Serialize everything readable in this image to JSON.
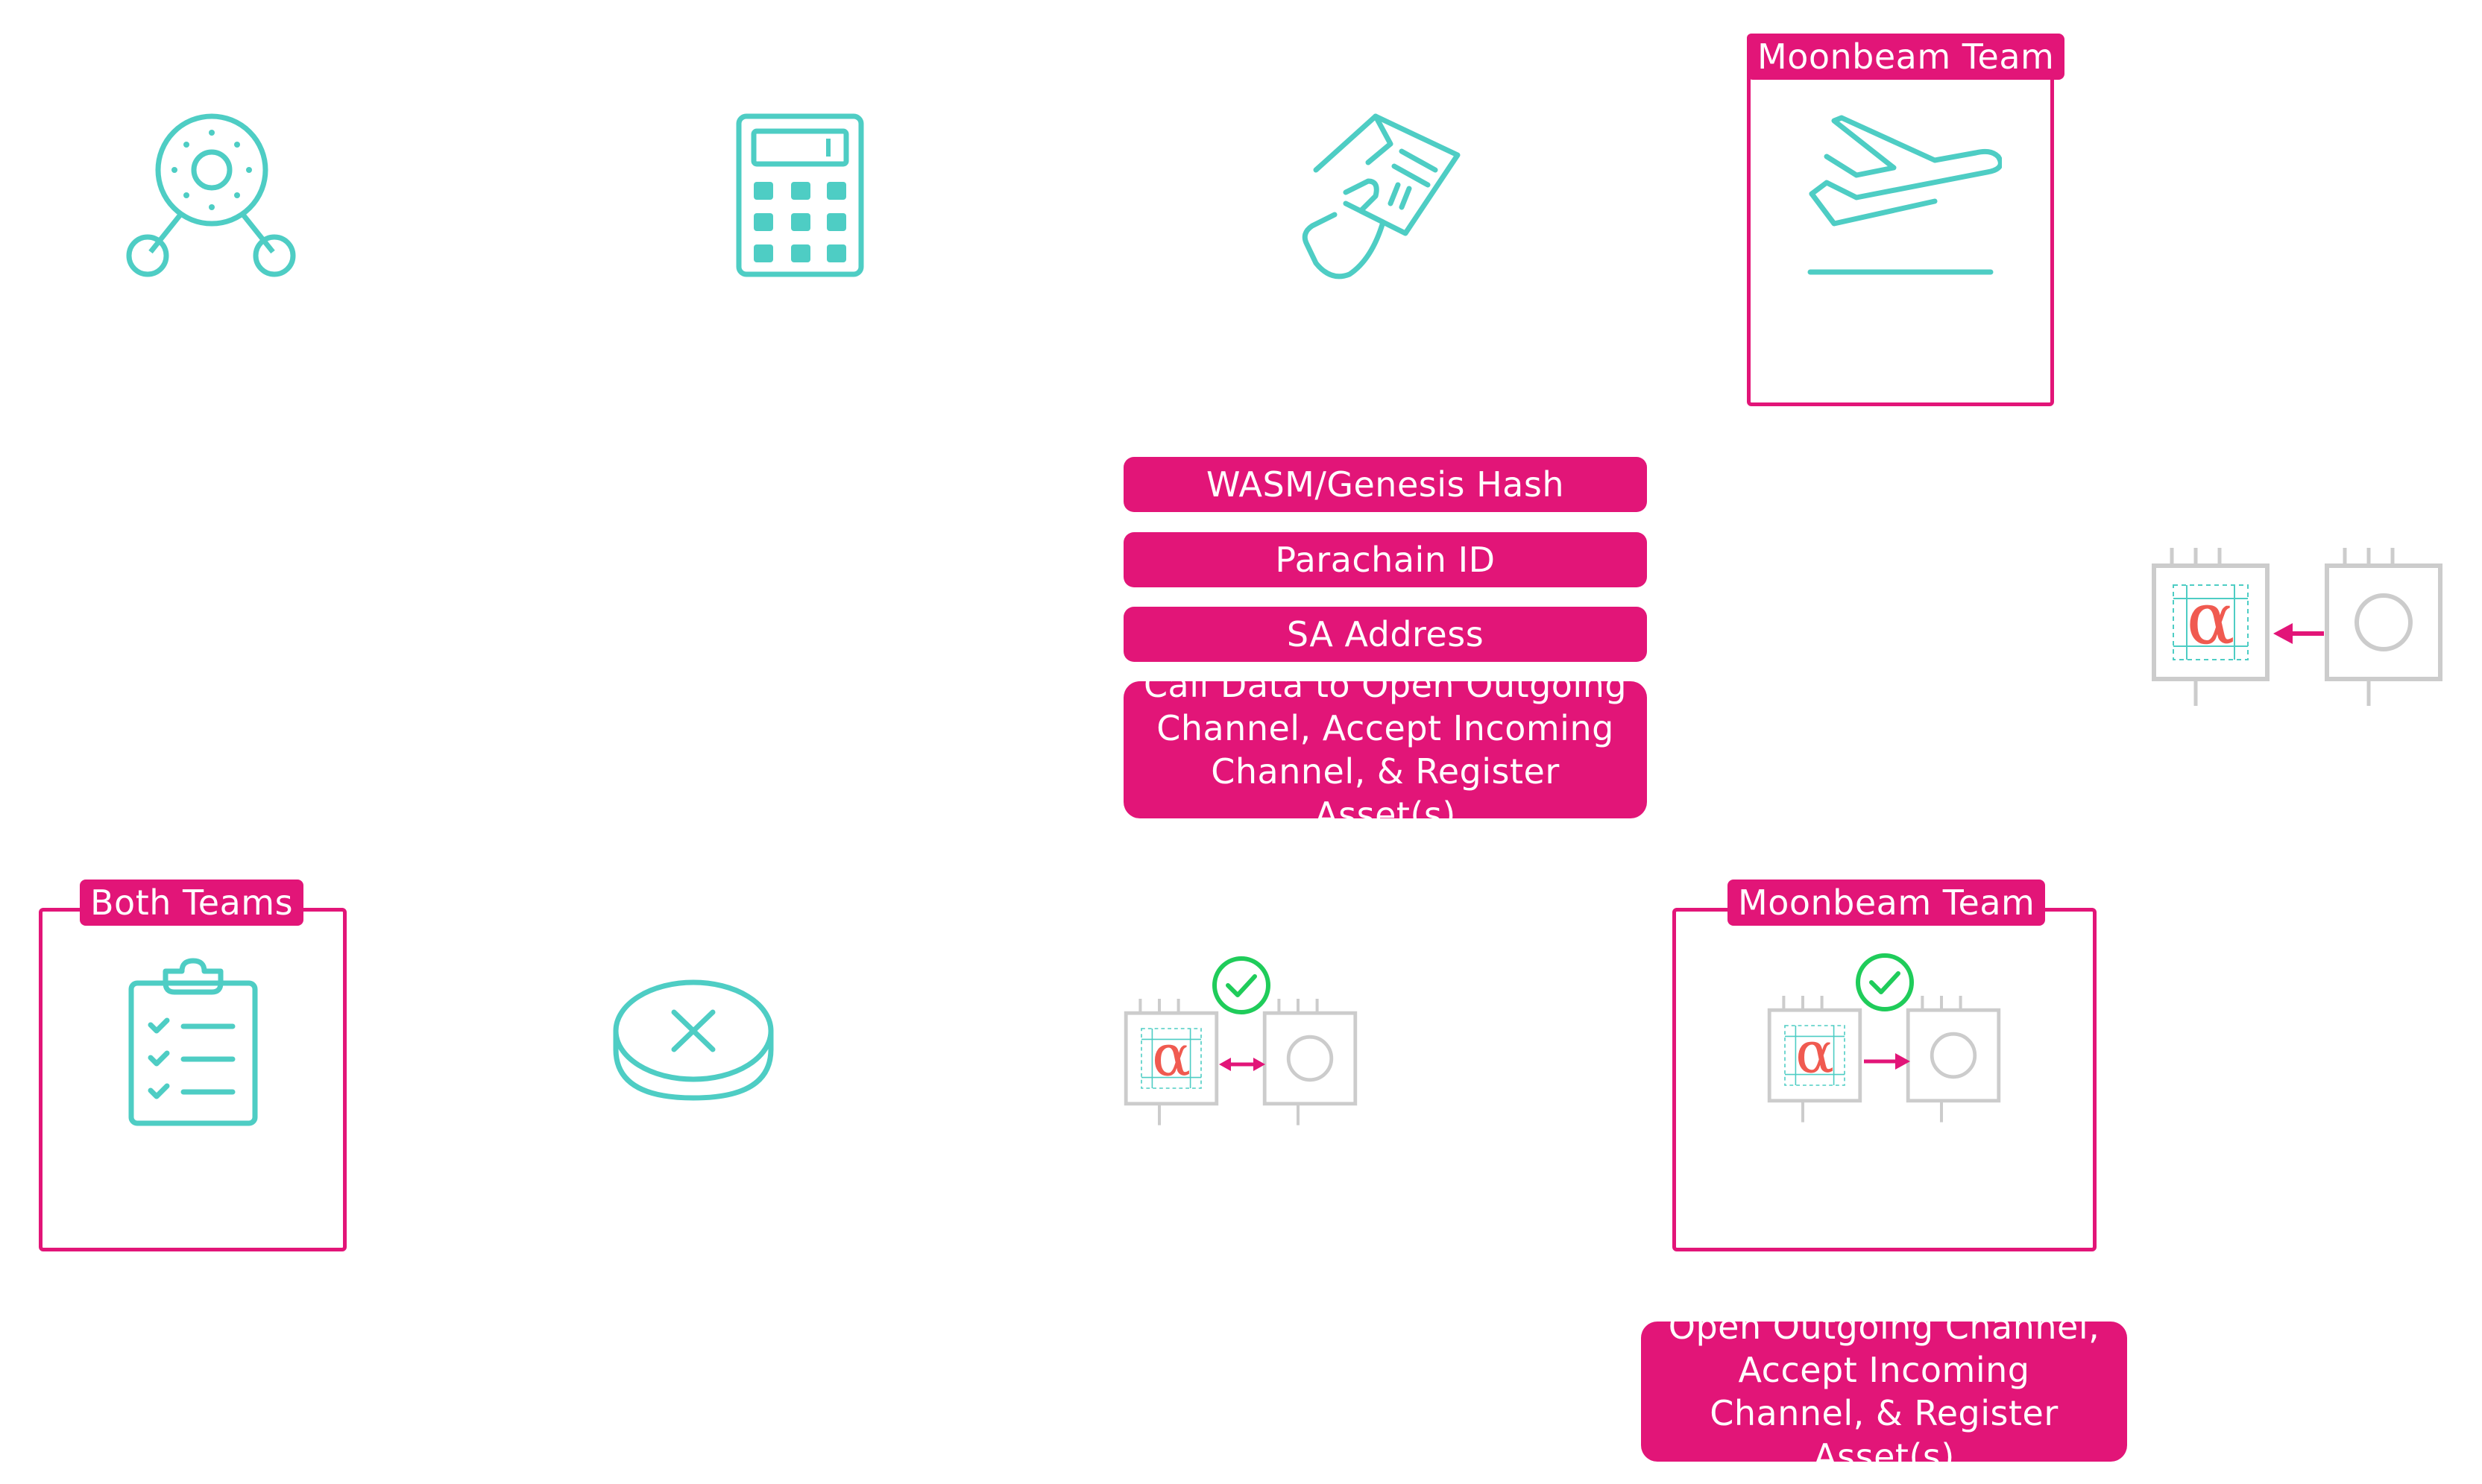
{
  "icons": {
    "node_network": "node-network-icon",
    "calculator": "calculator-icon",
    "hand_document": "hand-holding-document-icon",
    "airplane_takeoff": "airplane-takeoff-icon",
    "clipboard_checklist": "clipboard-checklist-icon",
    "token_cancel": "token-cancel-icon",
    "chip_pair": "parachain-chip-pair-icon",
    "check": "check-circle-icon"
  },
  "colors": {
    "accent": "#e21578",
    "teal": "#4ecdc4",
    "chip": "#cccccc",
    "alpha": "#f05a50",
    "check": "#1fcc5a"
  },
  "frames": {
    "top_right": {
      "tag": "Moonbeam Team"
    },
    "bottom_left": {
      "tag": "Both Teams"
    },
    "bottom_right": {
      "tag": "Moonbeam Team"
    }
  },
  "info_pills": [
    "WASM/Genesis Hash",
    "Parachain ID",
    "SA Address",
    "Call Data to Open Outgoing Channel, Accept Incoming Channel, & Register Asset(s)"
  ],
  "action_pill": "Open Outgoing Channel, Accept Incoming Channel, & Register Asset(s)",
  "chip_glyph": "α"
}
